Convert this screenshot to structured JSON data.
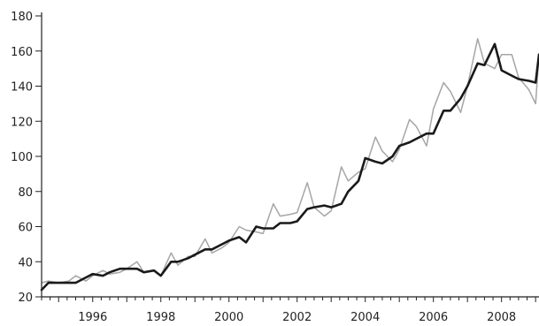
{
  "chart_data": {
    "type": "line",
    "title": "",
    "xlabel": "",
    "ylabel": "",
    "xlim": [
      1994.5,
      2009.1
    ],
    "ylim": [
      20,
      180
    ],
    "xticks": [
      1996,
      1998,
      2000,
      2002,
      2004,
      2006,
      2008
    ],
    "xtick_labels": [
      "1996",
      "1998",
      "2000",
      "2002",
      "2004",
      "2006",
      "2008"
    ],
    "yticks": [
      20,
      40,
      60,
      80,
      100,
      120,
      140,
      160,
      180
    ],
    "ytick_labels": [
      "20",
      "40",
      "60",
      "80",
      "100",
      "120",
      "140",
      "160",
      "180"
    ],
    "grid": false,
    "legend": "none",
    "series": [
      {
        "color": "#a6a6a6",
        "width": 1.5,
        "x": [
          1994.5,
          1994.7,
          1995.0,
          1995.3,
          1995.5,
          1995.8,
          1996.0,
          1996.3,
          1996.5,
          1996.8,
          1997.0,
          1997.3,
          1997.5,
          1997.8,
          1998.0,
          1998.3,
          1998.5,
          1998.8,
          1999.0,
          1999.3,
          1999.5,
          1999.8,
          2000.0,
          2000.3,
          2000.5,
          2000.8,
          2001.0,
          2001.3,
          2001.5,
          2001.8,
          2002.0,
          2002.3,
          2002.5,
          2002.8,
          2003.0,
          2003.3,
          2003.5,
          2003.8,
          2004.0,
          2004.3,
          2004.5,
          2004.8,
          2005.0,
          2005.3,
          2005.5,
          2005.8,
          2006.0,
          2006.3,
          2006.5,
          2006.8,
          2007.0,
          2007.3,
          2007.5,
          2007.8,
          2008.0,
          2008.3,
          2008.5,
          2008.8,
          2009.0,
          2009.1
        ],
        "y": [
          28,
          29,
          28,
          29,
          32,
          29,
          32,
          35,
          33,
          34,
          36,
          40,
          34,
          35,
          32,
          45,
          38,
          43,
          43,
          53,
          45,
          48,
          51,
          60,
          58,
          57,
          56,
          73,
          66,
          67,
          68,
          85,
          71,
          66,
          69,
          94,
          86,
          91,
          93,
          111,
          103,
          97,
          104,
          121,
          117,
          106,
          127,
          142,
          137,
          125,
          140,
          167,
          153,
          150,
          158,
          158,
          145,
          138,
          130,
          158
        ]
      },
      {
        "color": "#1a1a1a",
        "width": 2.6,
        "x": [
          1994.5,
          1994.7,
          1995.0,
          1995.3,
          1995.5,
          1995.8,
          1996.0,
          1996.3,
          1996.5,
          1996.8,
          1997.0,
          1997.3,
          1997.5,
          1997.8,
          1998.0,
          1998.3,
          1998.5,
          1998.8,
          1999.0,
          1999.3,
          1999.5,
          1999.8,
          2000.0,
          2000.3,
          2000.5,
          2000.8,
          2001.0,
          2001.3,
          2001.5,
          2001.8,
          2002.0,
          2002.3,
          2002.5,
          2002.8,
          2003.0,
          2003.3,
          2003.5,
          2003.8,
          2004.0,
          2004.3,
          2004.5,
          2004.8,
          2005.0,
          2005.3,
          2005.5,
          2005.8,
          2006.0,
          2006.3,
          2006.5,
          2006.8,
          2007.0,
          2007.3,
          2007.5,
          2007.8,
          2008.0,
          2008.3,
          2008.5,
          2008.8,
          2009.0,
          2009.1
        ],
        "y": [
          24,
          28,
          28,
          28,
          28,
          31,
          33,
          32,
          34,
          36,
          36,
          36,
          34,
          35,
          32,
          40,
          40,
          42,
          44,
          47,
          47,
          50,
          52,
          54,
          51,
          60,
          59,
          59,
          62,
          62,
          63,
          70,
          71,
          72,
          71,
          73,
          80,
          86,
          99,
          97,
          96,
          100,
          106,
          108,
          110,
          113,
          113,
          126,
          126,
          133,
          140,
          153,
          152,
          164,
          149,
          146,
          144,
          143,
          142,
          158
        ]
      }
    ]
  }
}
